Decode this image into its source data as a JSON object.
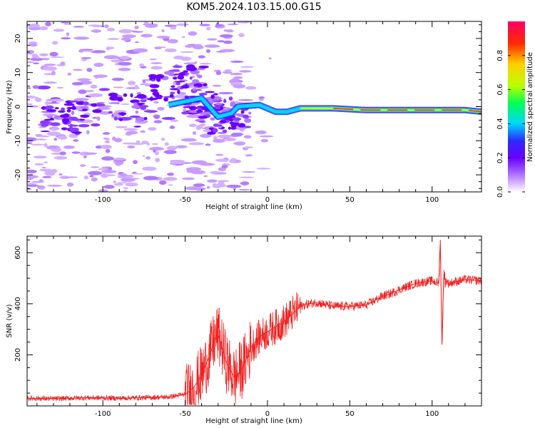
{
  "title": "KOM5.2024.103.15.00.G15",
  "chart_data": [
    {
      "type": "heatmap",
      "xlabel": "Height of straight line (km)",
      "ylabel": "Frequency (Hz)",
      "xlim": [
        -146,
        130
      ],
      "ylim": [
        -25,
        25
      ],
      "xticks": [
        -100,
        -50,
        0,
        50,
        100
      ],
      "yticks": [
        -20,
        -10,
        0,
        10,
        20
      ],
      "colorbar": {
        "label": "Normalized spectral amplitude",
        "range": [
          0,
          1
        ],
        "ticks": [
          "0.0",
          "0.2",
          "0.4",
          "0.6",
          "0.8"
        ],
        "tick_values": [
          0,
          0.2,
          0.4,
          0.6,
          0.8
        ],
        "colormap": [
          "#ffffff",
          "#d9b8ff",
          "#a05cff",
          "#6a00ff",
          "#2b2bff",
          "#00d7ff",
          "#00ff55",
          "#b8ff00",
          "#ffd000",
          "#ff2a00",
          "#ff0066"
        ]
      },
      "signal_track": [
        [
          -60,
          0.5
        ],
        [
          -50,
          1.5
        ],
        [
          -40,
          2.5
        ],
        [
          -30,
          -3
        ],
        [
          -22,
          -2
        ],
        [
          -18,
          0
        ],
        [
          -5,
          0.5
        ],
        [
          5,
          -1.5
        ],
        [
          12,
          -1.5
        ],
        [
          20,
          -0.5
        ],
        [
          40,
          -0.5
        ],
        [
          60,
          -1
        ],
        [
          80,
          -1
        ],
        [
          100,
          -1
        ],
        [
          120,
          -1
        ],
        [
          130,
          -1.5
        ]
      ]
    },
    {
      "type": "line",
      "xlabel": "Height of straight line (km)",
      "ylabel": "SNR (v/v)",
      "xlim": [
        -146,
        130
      ],
      "ylim": [
        0,
        665
      ],
      "xticks": [
        -100,
        -50,
        0,
        50,
        100
      ],
      "yticks": [
        200,
        400,
        600
      ],
      "line_color": "#ee2222",
      "series": [
        {
          "x": [
            -146,
            -130,
            -110,
            -90,
            -70,
            -60,
            -50,
            -45,
            -40,
            -35,
            -32,
            -30,
            -28,
            -25,
            -20,
            -15,
            -10,
            -5,
            0,
            5,
            10,
            15,
            20,
            25,
            30,
            40,
            50,
            60,
            70,
            75,
            80,
            90,
            100,
            104,
            105,
            106,
            107,
            110,
            120,
            130
          ],
          "y": [
            30,
            28,
            32,
            30,
            33,
            35,
            45,
            70,
            120,
            200,
            260,
            280,
            240,
            170,
            110,
            150,
            230,
            270,
            290,
            310,
            330,
            360,
            390,
            400,
            405,
            390,
            390,
            395,
            430,
            440,
            455,
            480,
            490,
            480,
            650,
            240,
            500,
            480,
            495,
            490
          ]
        }
      ]
    }
  ]
}
